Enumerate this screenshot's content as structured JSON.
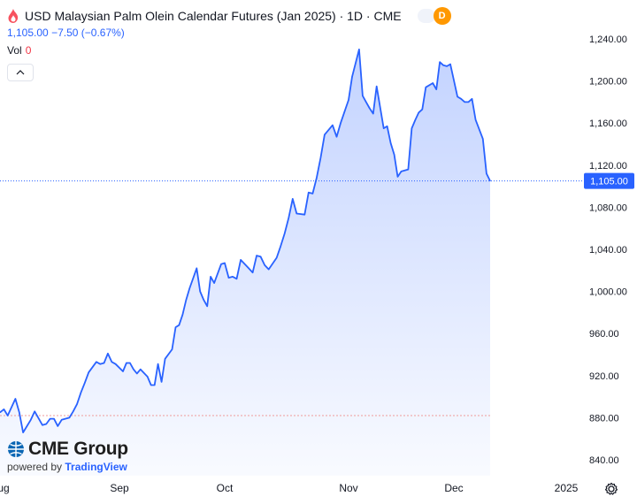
{
  "header": {
    "title": "USD Malaysian Palm Olein Calendar Futures (Jan 2025) · 1D · CME",
    "d_badge": "D",
    "price": "1,105.00",
    "change": "−7.50 (−0.67%)",
    "vol_label": "Vol",
    "vol_value": "0"
  },
  "branding": {
    "logo": "CME Group",
    "powered_by": "powered by",
    "powered_brand": "TradingView"
  },
  "colors": {
    "line": "#2962ff",
    "area": "#2962ff",
    "last_line": "#2962ff",
    "ref_line": "#ef9a9a"
  },
  "icons": [
    "flame-icon",
    "chevron-up-icon",
    "cme-globe-icon",
    "settings-icon"
  ],
  "chart_data": {
    "type": "area",
    "last_price_label": "1,105.00",
    "reference_price": 882,
    "ylim": [
      825,
      1255
    ],
    "y_ticks": [
      {
        "value": 840,
        "label": "840.00"
      },
      {
        "value": 880,
        "label": "880.00"
      },
      {
        "value": 920,
        "label": "920.00"
      },
      {
        "value": 960,
        "label": "960.00"
      },
      {
        "value": 1000,
        "label": "1,000.00"
      },
      {
        "value": 1040,
        "label": "1,040.00"
      },
      {
        "value": 1080,
        "label": "1,080.00"
      },
      {
        "value": 1120,
        "label": "1,120.00"
      },
      {
        "value": 1160,
        "label": "1,160.00"
      },
      {
        "value": 1200,
        "label": "1,200.00"
      },
      {
        "value": 1240,
        "label": "1,240.00"
      }
    ],
    "x_ticks": [
      {
        "date": "2024-08-01",
        "label": "Aug"
      },
      {
        "date": "2024-09-01",
        "label": "Sep"
      },
      {
        "date": "2024-10-01",
        "label": "Oct"
      },
      {
        "date": "2024-11-01",
        "label": "Nov"
      },
      {
        "date": "2024-12-01",
        "label": "Dec"
      },
      {
        "date": "2025-01-01",
        "label": "2025"
      }
    ],
    "xlim": [
      "2024-08-01",
      "2025-01-08"
    ],
    "series": [
      {
        "points": [
          [
            "2024-08-01",
            885
          ],
          [
            "2024-08-02",
            888
          ],
          [
            "2024-08-03",
            882
          ],
          [
            "2024-08-05",
            898
          ],
          [
            "2024-08-06",
            885
          ],
          [
            "2024-08-07",
            866
          ],
          [
            "2024-08-08",
            872
          ],
          [
            "2024-08-09",
            878
          ],
          [
            "2024-08-10",
            886
          ],
          [
            "2024-08-12",
            873
          ],
          [
            "2024-08-13",
            874
          ],
          [
            "2024-08-14",
            879
          ],
          [
            "2024-08-15",
            879
          ],
          [
            "2024-08-16",
            872
          ],
          [
            "2024-08-17",
            878
          ],
          [
            "2024-08-19",
            880
          ],
          [
            "2024-08-20",
            886
          ],
          [
            "2024-08-21",
            893
          ],
          [
            "2024-08-22",
            904
          ],
          [
            "2024-08-23",
            913
          ],
          [
            "2024-08-24",
            923
          ],
          [
            "2024-08-26",
            933
          ],
          [
            "2024-08-27",
            931
          ],
          [
            "2024-08-28",
            932
          ],
          [
            "2024-08-29",
            941
          ],
          [
            "2024-08-30",
            933
          ],
          [
            "2024-08-31",
            931
          ],
          [
            "2024-09-02",
            924
          ],
          [
            "2024-09-03",
            932
          ],
          [
            "2024-09-04",
            932
          ],
          [
            "2024-09-05",
            926
          ],
          [
            "2024-09-06",
            922
          ],
          [
            "2024-09-07",
            926
          ],
          [
            "2024-09-09",
            919
          ],
          [
            "2024-09-10",
            911
          ],
          [
            "2024-09-11",
            911
          ],
          [
            "2024-09-12",
            931
          ],
          [
            "2024-09-13",
            914
          ],
          [
            "2024-09-14",
            936
          ],
          [
            "2024-09-16",
            945
          ],
          [
            "2024-09-17",
            966
          ],
          [
            "2024-09-18",
            968
          ],
          [
            "2024-09-19",
            978
          ],
          [
            "2024-09-20",
            992
          ],
          [
            "2024-09-21",
            1003
          ],
          [
            "2024-09-23",
            1022
          ],
          [
            "2024-09-24",
            1000
          ],
          [
            "2024-09-25",
            992
          ],
          [
            "2024-09-26",
            986
          ],
          [
            "2024-09-27",
            1014
          ],
          [
            "2024-09-28",
            1008
          ],
          [
            "2024-09-30",
            1026
          ],
          [
            "2024-10-01",
            1027
          ],
          [
            "2024-10-02",
            1013
          ],
          [
            "2024-10-03",
            1014
          ],
          [
            "2024-10-04",
            1012
          ],
          [
            "2024-10-05",
            1030
          ],
          [
            "2024-10-07",
            1022
          ],
          [
            "2024-10-08",
            1018
          ],
          [
            "2024-10-09",
            1034
          ],
          [
            "2024-10-10",
            1033
          ],
          [
            "2024-10-11",
            1025
          ],
          [
            "2024-10-12",
            1021
          ],
          [
            "2024-10-14",
            1032
          ],
          [
            "2024-10-15",
            1043
          ],
          [
            "2024-10-16",
            1055
          ],
          [
            "2024-10-17",
            1070
          ],
          [
            "2024-10-18",
            1088
          ],
          [
            "2024-10-19",
            1074
          ],
          [
            "2024-10-21",
            1073
          ],
          [
            "2024-10-22",
            1094
          ],
          [
            "2024-10-23",
            1093
          ],
          [
            "2024-10-24",
            1108
          ],
          [
            "2024-10-25",
            1127
          ],
          [
            "2024-10-26",
            1149
          ],
          [
            "2024-10-28",
            1158
          ],
          [
            "2024-10-29",
            1147
          ],
          [
            "2024-10-30",
            1160
          ],
          [
            "2024-10-31",
            1171
          ],
          [
            "2024-11-01",
            1182
          ],
          [
            "2024-11-02",
            1204
          ],
          [
            "2024-11-04",
            1230
          ],
          [
            "2024-11-05",
            1186
          ],
          [
            "2024-11-06",
            1180
          ],
          [
            "2024-11-07",
            1174
          ],
          [
            "2024-11-08",
            1169
          ],
          [
            "2024-11-09",
            1195
          ],
          [
            "2024-11-11",
            1155
          ],
          [
            "2024-11-12",
            1157
          ],
          [
            "2024-11-13",
            1141
          ],
          [
            "2024-11-14",
            1130
          ],
          [
            "2024-11-15",
            1109
          ],
          [
            "2024-11-16",
            1114
          ],
          [
            "2024-11-18",
            1116
          ],
          [
            "2024-11-19",
            1155
          ],
          [
            "2024-11-20",
            1163
          ],
          [
            "2024-11-21",
            1170
          ],
          [
            "2024-11-22",
            1173
          ],
          [
            "2024-11-23",
            1194
          ],
          [
            "2024-11-25",
            1198
          ],
          [
            "2024-11-26",
            1192
          ],
          [
            "2024-11-27",
            1218
          ],
          [
            "2024-11-28",
            1215
          ],
          [
            "2024-11-29",
            1214
          ],
          [
            "2024-11-30",
            1216
          ],
          [
            "2024-12-02",
            1185
          ],
          [
            "2024-12-03",
            1183
          ],
          [
            "2024-12-04",
            1180
          ],
          [
            "2024-12-05",
            1180
          ],
          [
            "2024-12-06",
            1183
          ],
          [
            "2024-12-07",
            1163
          ],
          [
            "2024-12-09",
            1145
          ],
          [
            "2024-12-10",
            1112
          ],
          [
            "2024-12-11",
            1105
          ]
        ]
      }
    ]
  }
}
